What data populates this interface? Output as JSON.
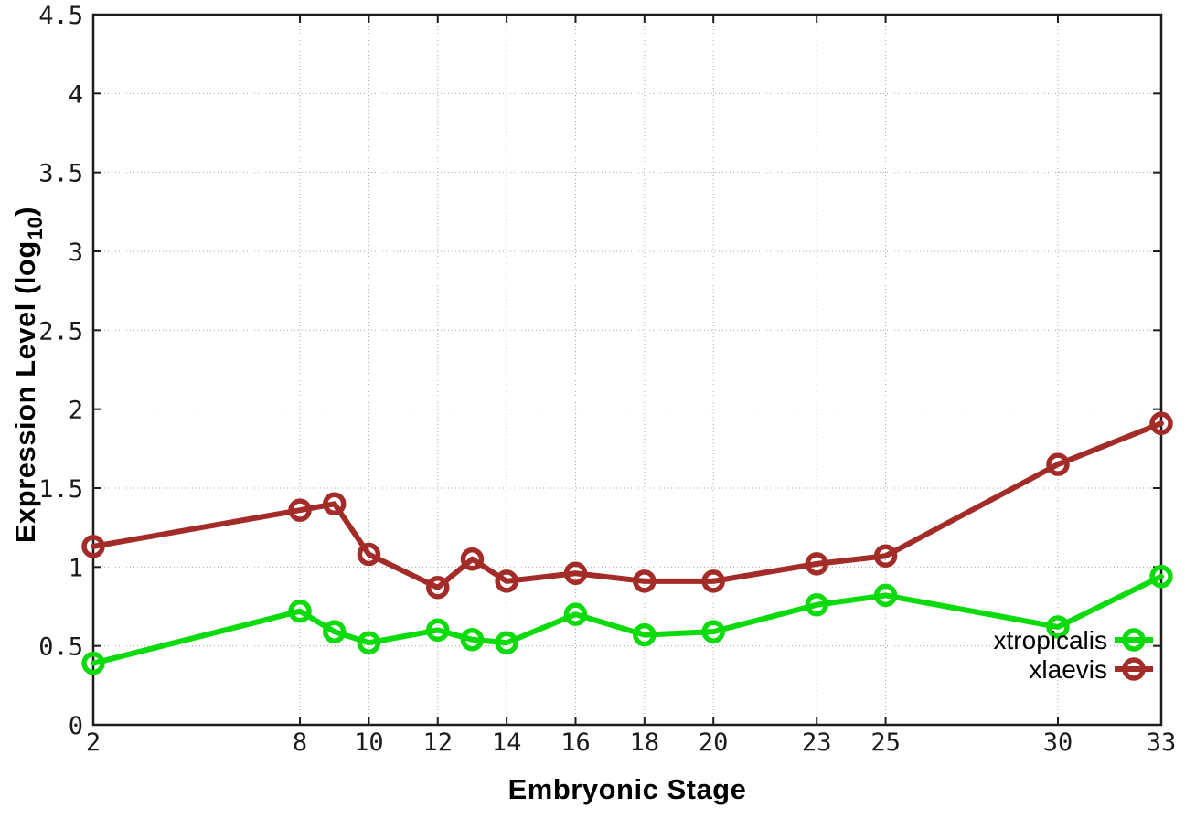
{
  "labels": {
    "xlabel": "Embryonic Stage",
    "ylabel_main": "Expression Level (log",
    "ylabel_sub": "10",
    "ylabel_close": ")"
  },
  "style": {
    "background": "#ffffff",
    "axis_color": "#1c1c1c",
    "grid_color": "#a8a8a8",
    "tick_label_color": "#1b1b1b",
    "title_color": "#000000"
  },
  "chart_data": {
    "type": "line",
    "title": "",
    "xlabel": "Embryonic Stage",
    "ylabel": "Expression Level (log10)",
    "x": [
      2,
      8,
      9,
      10,
      12,
      13,
      14,
      16,
      18,
      20,
      23,
      25,
      30,
      33
    ],
    "series": [
      {
        "name": "xtropicalis",
        "color": "#0bdb0b",
        "values": [
          0.39,
          0.72,
          0.59,
          0.52,
          0.6,
          0.54,
          0.52,
          0.7,
          0.57,
          0.59,
          0.76,
          0.82,
          0.62,
          0.94
        ]
      },
      {
        "name": "xlaevis",
        "color": "#a42c28",
        "values": [
          1.13,
          1.36,
          1.4,
          1.08,
          0.87,
          1.05,
          0.91,
          0.96,
          0.91,
          0.91,
          1.02,
          1.07,
          1.65,
          1.91
        ]
      }
    ],
    "xticks": [
      2,
      8,
      10,
      12,
      14,
      16,
      18,
      20,
      23,
      25,
      30,
      33
    ],
    "yticks": [
      0,
      0.5,
      1,
      1.5,
      2,
      2.5,
      3,
      3.5,
      4,
      4.5
    ],
    "xlim": [
      2,
      33
    ],
    "ylim": [
      0,
      4.5
    ],
    "grid": true,
    "legend_position": "inside-bottom-right",
    "marker": "open-circle"
  }
}
